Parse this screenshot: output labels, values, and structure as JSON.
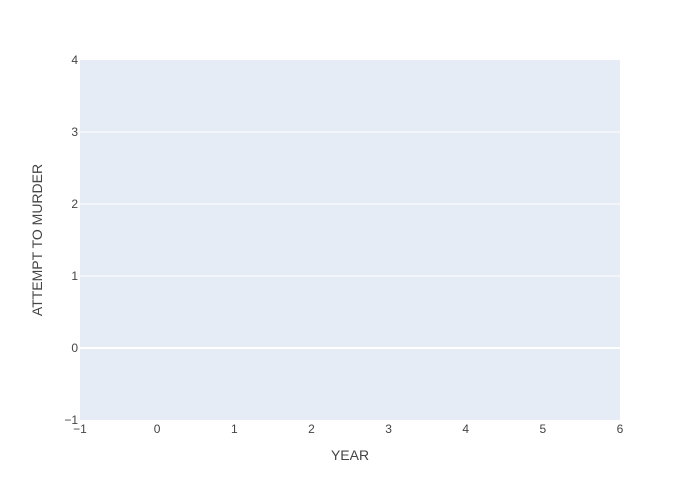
{
  "chart_data": {
    "type": "line",
    "title": "",
    "xlabel": "YEAR",
    "ylabel": "ATTEMPT TO MURDER",
    "xlim": [
      -1,
      6
    ],
    "ylim": [
      -1,
      4
    ],
    "x_ticks": [
      -1,
      0,
      1,
      2,
      3,
      4,
      5,
      6
    ],
    "x_tick_labels": [
      "−1",
      "0",
      "1",
      "2",
      "3",
      "4",
      "5",
      "6"
    ],
    "y_ticks": [
      -1,
      0,
      1,
      2,
      3,
      4
    ],
    "y_tick_labels": [
      "−1",
      "0",
      "1",
      "2",
      "3",
      "4"
    ],
    "grid": true,
    "series": [],
    "colors": {
      "plot_background": "#e5ecf6",
      "grid": "#ffffff",
      "text": "#444444"
    }
  }
}
